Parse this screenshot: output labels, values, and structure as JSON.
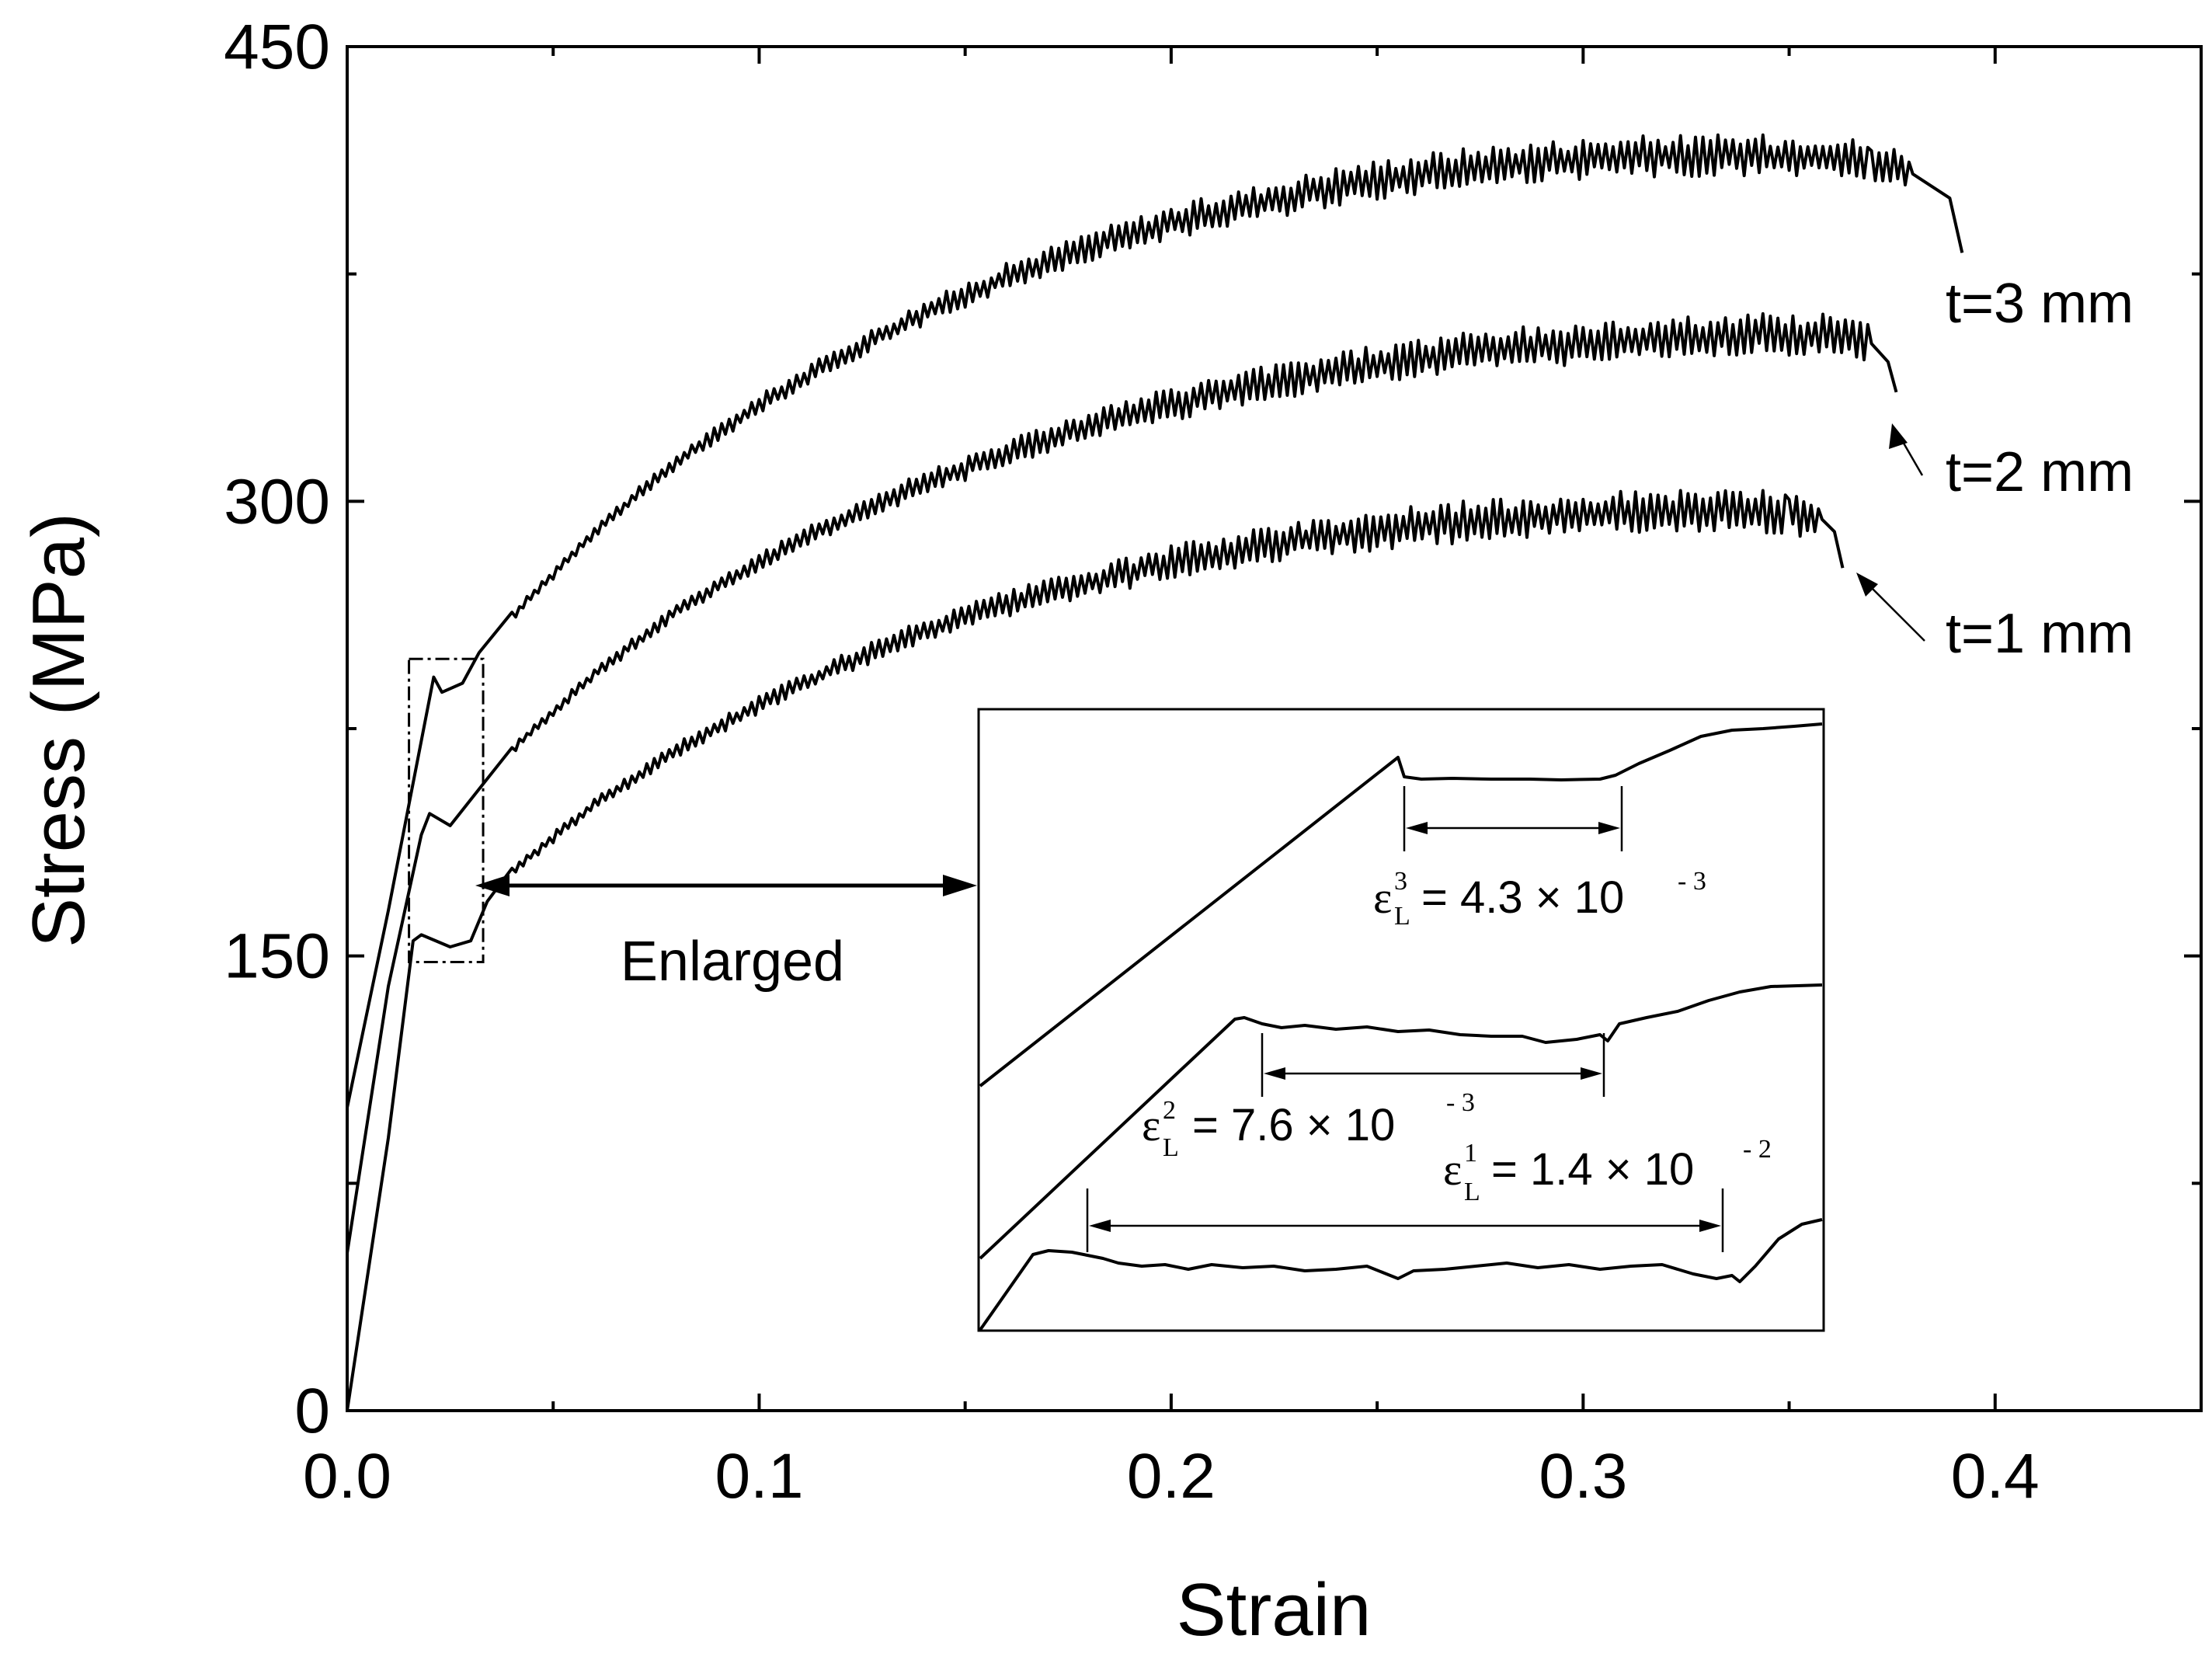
{
  "chart_data": {
    "type": "line",
    "xlabel": "Strain",
    "ylabel": "Stress (MPa)",
    "xlim": [
      0,
      0.45
    ],
    "ylim": [
      0,
      450
    ],
    "x_ticks": [
      "0.0",
      "0.1",
      "0.2",
      "0.3",
      "0.4"
    ],
    "y_ticks": [
      "0",
      "150",
      "300",
      "450"
    ],
    "series": [
      {
        "name": "t=3 mm",
        "label": "t=3 mm",
        "x": [
          0.0,
          0.01,
          0.021,
          0.023,
          0.028,
          0.032,
          0.04,
          0.06,
          0.08,
          0.1,
          0.12,
          0.14,
          0.16,
          0.18,
          0.2,
          0.22,
          0.24,
          0.26,
          0.28,
          0.3,
          0.32,
          0.34,
          0.36,
          0.37,
          0.38,
          0.389,
          0.392
        ],
        "y": [
          100,
          165,
          242,
          237,
          240,
          250,
          262,
          290,
          313,
          332,
          348,
          362,
          374,
          384,
          392,
          398,
          404,
          408,
          411,
          413,
          414,
          414,
          414,
          412,
          408,
          400,
          382
        ]
      },
      {
        "name": "t=2 mm",
        "label": "t=2 mm",
        "x": [
          0.0,
          0.01,
          0.018,
          0.02,
          0.025,
          0.032,
          0.04,
          0.06,
          0.08,
          0.1,
          0.12,
          0.14,
          0.16,
          0.18,
          0.2,
          0.22,
          0.24,
          0.26,
          0.28,
          0.3,
          0.32,
          0.34,
          0.36,
          0.37,
          0.374,
          0.376
        ],
        "y": [
          52,
          140,
          190,
          197,
          193,
          205,
          218,
          243,
          264,
          280,
          294,
          306,
          316,
          325,
          332,
          338,
          343,
          347,
          350,
          352,
          354,
          355,
          355,
          352,
          346,
          336
        ]
      },
      {
        "name": "t=1 mm",
        "label": "t=1 mm",
        "x": [
          0.0,
          0.01,
          0.016,
          0.018,
          0.025,
          0.03,
          0.034,
          0.04,
          0.06,
          0.08,
          0.1,
          0.12,
          0.14,
          0.16,
          0.18,
          0.2,
          0.22,
          0.24,
          0.26,
          0.28,
          0.3,
          0.32,
          0.34,
          0.35,
          0.358,
          0.361,
          0.363
        ],
        "y": [
          0,
          90,
          155,
          157,
          153,
          155,
          168,
          178,
          200,
          218,
          233,
          246,
          257,
          266,
          273,
          280,
          285,
          289,
          292,
          294,
          296,
          297,
          297,
          296,
          294,
          290,
          278
        ]
      }
    ],
    "annotations": {
      "enlarged": "Enlarged",
      "enlarge_box_strain": [
        0.015,
        0.033
      ],
      "enlarge_box_stress": [
        148,
        248
      ]
    },
    "inset": {
      "eps3": {
        "symbol": "ε",
        "sup": "3",
        "sub": "L",
        "text": "= 4.3 × 10",
        "exp": "- 3"
      },
      "eps2": {
        "symbol": "ε",
        "sup": "2",
        "sub": "L",
        "text": "= 7.6 × 10",
        "exp": "- 3"
      },
      "eps1": {
        "symbol": "ε",
        "sup": "1",
        "sub": "L",
        "text": "= 1.4 × 10",
        "exp": "- 2"
      }
    }
  }
}
